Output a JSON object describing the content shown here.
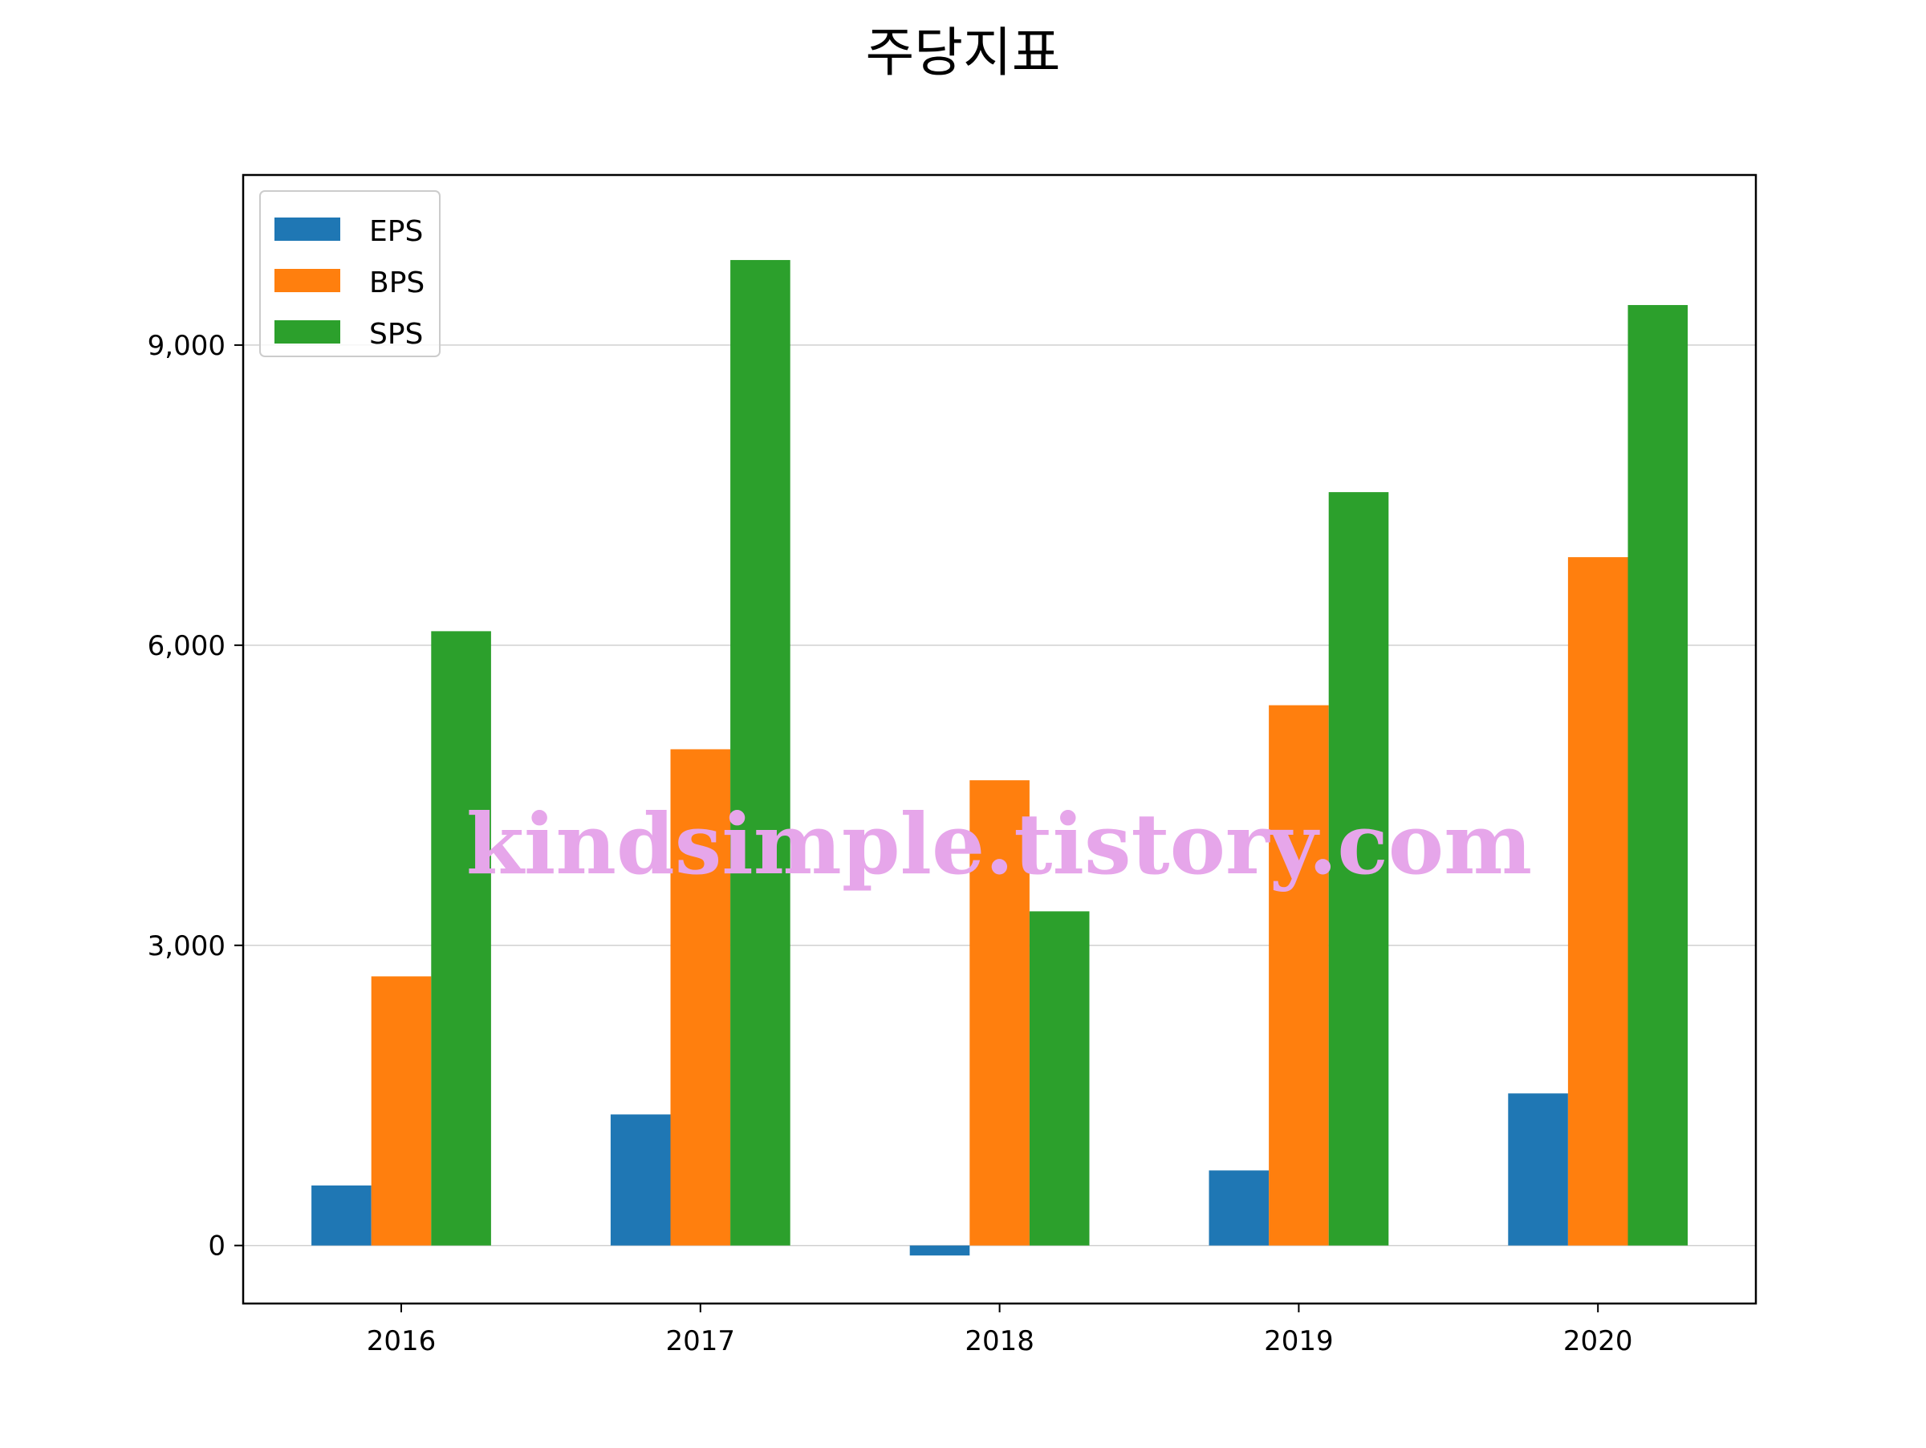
{
  "chart_data": {
    "type": "bar",
    "title": "주당지표",
    "categories": [
      "2016",
      "2017",
      "2018",
      "2019",
      "2020"
    ],
    "series": [
      {
        "name": "EPS",
        "color": "#1f77b4",
        "values": [
          600,
          1310,
          -100,
          750,
          1520
        ]
      },
      {
        "name": "BPS",
        "color": "#ff7f0e",
        "values": [
          2690,
          4960,
          4650,
          5400,
          6880
        ]
      },
      {
        "name": "SPS",
        "color": "#2ca02c",
        "values": [
          6140,
          9850,
          3340,
          7530,
          9400
        ]
      }
    ],
    "ylim": [
      -580,
      10700
    ],
    "yticks": [
      0,
      3000,
      6000,
      9000
    ],
    "ytick_labels": [
      "0",
      "3,000",
      "6,000",
      "9,000"
    ],
    "xlabel": "",
    "ylabel": "",
    "grid": "horizontal",
    "legend_position": "upper left"
  },
  "watermark": "kindsimple.tistory.com"
}
